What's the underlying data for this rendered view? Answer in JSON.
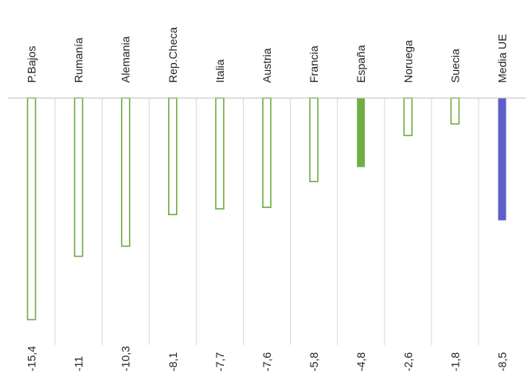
{
  "chart_data": {
    "type": "bar",
    "orientation": "vertical",
    "categories": [
      "P.Bajos",
      "Rumanía",
      "Alemania",
      "Rep.Checa",
      "Italia",
      "Austria",
      "Francia",
      "España",
      "Noruega",
      "Suecia",
      "Media UE"
    ],
    "values": [
      -15.4,
      -11,
      -10.3,
      -8.1,
      -7.7,
      -7.6,
      -5.8,
      -4.8,
      -2.6,
      -1.8,
      -8.5
    ],
    "data_labels": [
      "-15,4",
      "-11",
      "-10,3",
      "-8,1",
      "-7,7",
      "-7,6",
      "-5,8",
      "-4,8",
      "-2,6",
      "-1,8",
      "-8,5"
    ],
    "bar_styles": [
      "outline",
      "outline",
      "outline",
      "outline",
      "outline",
      "outline",
      "outline",
      "solid",
      "outline",
      "outline",
      "solid"
    ],
    "bar_colors": [
      "#70ad47",
      "#70ad47",
      "#70ad47",
      "#70ad47",
      "#70ad47",
      "#70ad47",
      "#70ad47",
      "#70ad47",
      "#70ad47",
      "#70ad47",
      "#5b5fc7"
    ],
    "ylim": [
      -16.5,
      0
    ],
    "grid": "vertical-separators",
    "category_labels_position": "top-rotated",
    "data_labels_position": "bottom-rotated"
  }
}
